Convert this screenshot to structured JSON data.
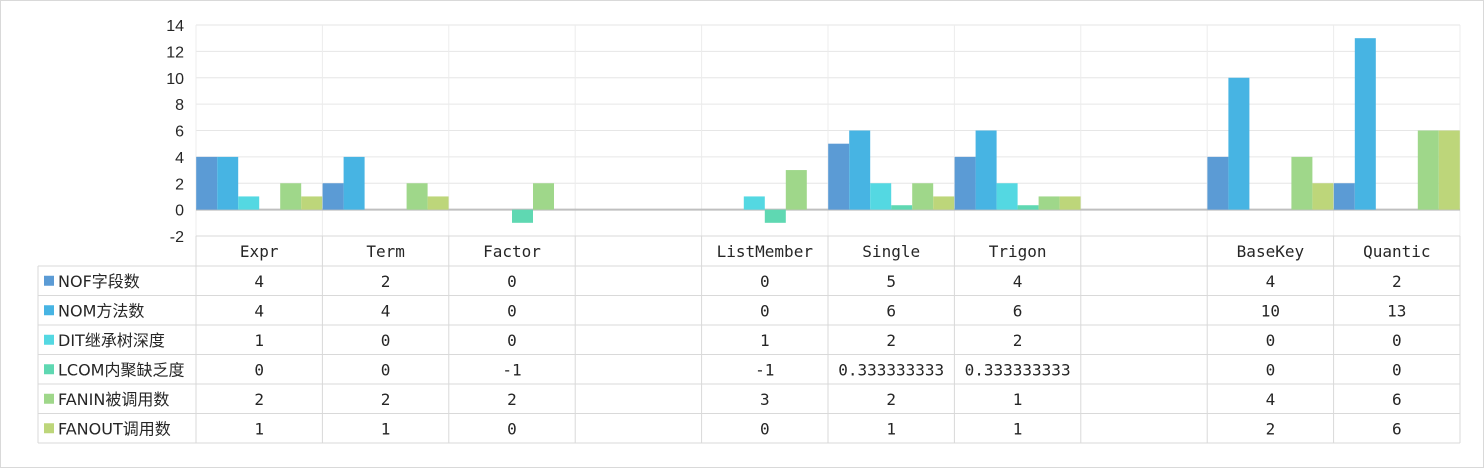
{
  "chart_data": {
    "type": "bar",
    "title": "",
    "xlabel": "",
    "ylabel": "",
    "ylim": [
      -2,
      14
    ],
    "yticks": [
      -2,
      0,
      2,
      4,
      6,
      8,
      10,
      12,
      14
    ],
    "grid": true,
    "legend": "data-table",
    "categories": [
      "Expr",
      "Term",
      "Factor",
      "",
      "ListMember",
      "Single",
      "Trigon",
      "",
      "BaseKey",
      "Quantic"
    ],
    "series": [
      {
        "name": "NOF字段数",
        "color": "#5b9bd5",
        "values": [
          4,
          2,
          0,
          null,
          0,
          5,
          4,
          null,
          4,
          2
        ],
        "labels": [
          "4",
          "2",
          "0",
          "",
          "0",
          "5",
          "4",
          "",
          "4",
          "2"
        ]
      },
      {
        "name": "NOM方法数",
        "color": "#47b4e3",
        "values": [
          4,
          4,
          0,
          null,
          0,
          6,
          6,
          null,
          10,
          13
        ],
        "labels": [
          "4",
          "4",
          "0",
          "",
          "0",
          "6",
          "6",
          "",
          "10",
          "13"
        ]
      },
      {
        "name": "DIT继承树深度",
        "color": "#54d8e2",
        "values": [
          1,
          0,
          0,
          null,
          1,
          2,
          2,
          null,
          0,
          0
        ],
        "labels": [
          "1",
          "0",
          "0",
          "",
          "1",
          "2",
          "2",
          "",
          "0",
          "0"
        ]
      },
      {
        "name": "LCOM内聚缺乏度",
        "color": "#5fd8b2",
        "values": [
          0,
          0,
          -1,
          null,
          -1,
          0.333333333,
          0.333333333,
          null,
          0,
          0
        ],
        "labels": [
          "0",
          "0",
          "-1",
          "",
          "-1",
          "0.333333333",
          "0.333333333",
          "",
          "0",
          "0"
        ]
      },
      {
        "name": "FANIN被调用数",
        "color": "#9fd78a",
        "values": [
          2,
          2,
          2,
          null,
          3,
          2,
          1,
          null,
          4,
          6
        ],
        "labels": [
          "2",
          "2",
          "2",
          "",
          "3",
          "2",
          "1",
          "",
          "4",
          "6"
        ]
      },
      {
        "name": "FANOUT调用数",
        "color": "#bdd67a",
        "values": [
          1,
          1,
          0,
          null,
          0,
          1,
          1,
          null,
          2,
          6
        ],
        "labels": [
          "1",
          "1",
          "0",
          "",
          "0",
          "1",
          "1",
          "",
          "2",
          "6"
        ]
      }
    ]
  }
}
